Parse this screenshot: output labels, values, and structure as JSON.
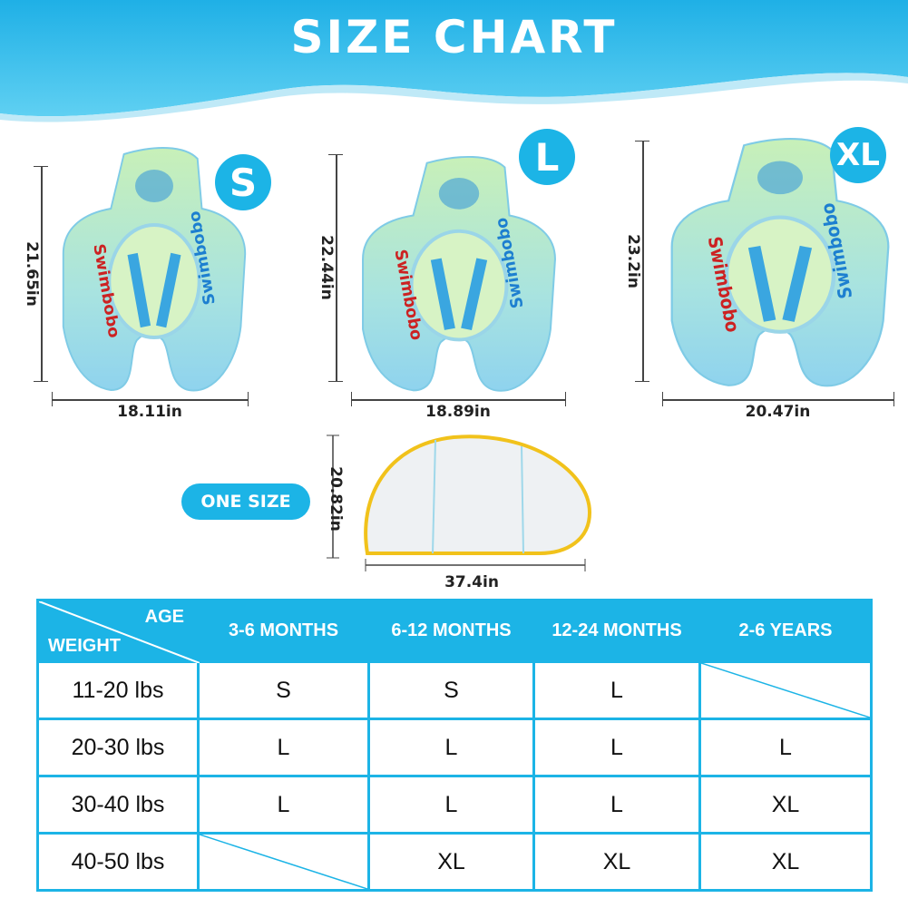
{
  "title": "SIZE CHART",
  "products": [
    {
      "size": "S",
      "height": "21.65in",
      "width": "18.11in",
      "brand": "Swimbobo"
    },
    {
      "size": "L",
      "height": "22.44in",
      "width": "18.89in",
      "brand": "Swimbobo"
    },
    {
      "size": "XL",
      "height": "23.2in",
      "width": "20.47in",
      "brand": "Swimbobo"
    }
  ],
  "canopy": {
    "label": "ONE SIZE",
    "height": "20.82in",
    "width": "37.4in"
  },
  "table": {
    "corner_age": "AGE",
    "corner_weight": "WEIGHT",
    "columns": [
      "3-6 MONTHS",
      "6-12 MONTHS",
      "12-24 MONTHS",
      "2-6 YEARS"
    ],
    "rows": [
      {
        "weight": "11-20 lbs",
        "cells": [
          "S",
          "S",
          "L",
          ""
        ]
      },
      {
        "weight": "20-30 lbs",
        "cells": [
          "L",
          "L",
          "L",
          "L"
        ]
      },
      {
        "weight": "30-40 lbs",
        "cells": [
          "L",
          "L",
          "L",
          "XL"
        ]
      },
      {
        "weight": "40-50 lbs",
        "cells": [
          "",
          "XL",
          "XL",
          "XL"
        ]
      }
    ]
  },
  "colors": {
    "accent": "#1cb4e6",
    "header_wave": "#29b6e8"
  }
}
